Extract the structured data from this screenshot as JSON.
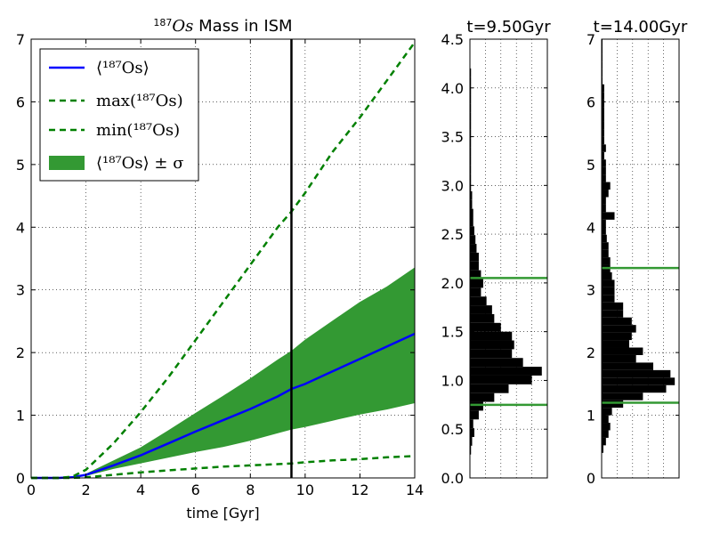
{
  "chart_data": [
    {
      "type": "line",
      "title": "187Os Mass in ISM",
      "xlabel": "time [Gyr]",
      "ylabel": "",
      "xlim": [
        0,
        14
      ],
      "ylim": [
        0,
        7
      ],
      "xticks": [
        "0",
        "2",
        "4",
        "6",
        "8",
        "10",
        "12",
        "14"
      ],
      "yticks": [
        "0",
        "1",
        "2",
        "3",
        "4",
        "5",
        "6",
        "7"
      ],
      "grid": true,
      "legend_position": "top-left",
      "vline_x": 9.5,
      "x": [
        0,
        1,
        1.5,
        2,
        3,
        4,
        5,
        6,
        7,
        8,
        9,
        9.5,
        10,
        11,
        12,
        13,
        14
      ],
      "series": [
        {
          "name": "⟨187Os⟩",
          "style": "solid",
          "color": "#0000ff",
          "values": [
            0,
            0,
            0.01,
            0.05,
            0.2,
            0.36,
            0.55,
            0.74,
            0.92,
            1.1,
            1.3,
            1.42,
            1.5,
            1.7,
            1.9,
            2.1,
            2.3
          ]
        },
        {
          "name": "max(187Os)",
          "style": "dashed",
          "color": "#008000",
          "values": [
            0,
            0,
            0.02,
            0.13,
            0.55,
            1.05,
            1.6,
            2.2,
            2.8,
            3.4,
            4.0,
            4.25,
            4.55,
            5.2,
            5.75,
            6.35,
            6.95
          ]
        },
        {
          "name": "min(187Os)",
          "style": "dashed",
          "color": "#008000",
          "values": [
            0,
            0,
            0,
            0.01,
            0.05,
            0.09,
            0.12,
            0.15,
            0.18,
            0.2,
            0.22,
            0.23,
            0.25,
            0.28,
            0.3,
            0.33,
            0.35
          ]
        }
      ],
      "band": {
        "name": "⟨187Os⟩ ± σ",
        "color": "#339933",
        "lower": [
          0,
          0,
          0.01,
          0.04,
          0.15,
          0.24,
          0.33,
          0.42,
          0.5,
          0.6,
          0.72,
          0.78,
          0.82,
          0.92,
          1.02,
          1.1,
          1.2
        ],
        "upper": [
          0,
          0,
          0.01,
          0.06,
          0.27,
          0.48,
          0.75,
          1.03,
          1.3,
          1.58,
          1.88,
          2.02,
          2.2,
          2.5,
          2.8,
          3.05,
          3.35
        ]
      },
      "legend_labels": {
        "mean": "⟨¹⁸⁷Os⟩",
        "max": "max(¹⁸⁷Os)",
        "min": "min(¹⁸⁷Os)",
        "band": "⟨¹⁸⁷Os⟩ ± σ"
      },
      "colors": {
        "mean": "#0000ff",
        "minmax": "#008000",
        "band": "#339933",
        "vline": "#000000"
      }
    },
    {
      "type": "bar",
      "orientation": "horizontal",
      "title": "t=9.50Gyr",
      "ylim": [
        0,
        4.5
      ],
      "yticks": [
        "0.0",
        "0.5",
        "1.0",
        "1.5",
        "2.0",
        "2.5",
        "3.0",
        "3.5",
        "4.0",
        "4.5"
      ],
      "grid": true,
      "bin_width": 0.09,
      "bins": [
        0.24,
        0.33,
        0.42,
        0.51,
        0.6,
        0.69,
        0.78,
        0.87,
        0.96,
        1.05,
        1.14,
        1.23,
        1.32,
        1.41,
        1.5,
        1.59,
        1.68,
        1.77,
        1.86,
        1.95,
        2.04,
        2.13,
        2.22,
        2.31,
        2.4,
        2.49,
        2.58,
        2.67,
        2.76,
        2.85,
        2.94,
        3.03,
        3.12,
        3.21,
        3.3,
        3.39,
        3.48,
        3.57,
        3.66,
        3.75,
        3.84,
        3.93,
        4.02,
        4.11
      ],
      "counts": [
        1,
        2,
        4,
        3,
        8,
        12,
        22,
        35,
        56,
        65,
        48,
        38,
        40,
        38,
        28,
        22,
        20,
        15,
        10,
        12,
        10,
        8,
        8,
        6,
        5,
        4,
        3,
        3,
        2,
        2,
        1,
        1,
        1,
        1,
        1,
        1,
        1,
        1,
        1,
        1,
        1,
        1,
        1,
        1
      ],
      "xmax": 70,
      "hlines": [
        0.75,
        2.05
      ],
      "hline_color": "#339933"
    },
    {
      "type": "bar",
      "orientation": "horizontal",
      "title": "t=14.00Gyr",
      "ylim": [
        0,
        7
      ],
      "yticks": [
        "0",
        "1",
        "2",
        "3",
        "4",
        "5",
        "6",
        "7"
      ],
      "grid": true,
      "bin_width": 0.12,
      "bins": [
        0.4,
        0.52,
        0.64,
        0.76,
        0.88,
        1.0,
        1.12,
        1.24,
        1.36,
        1.48,
        1.6,
        1.72,
        1.84,
        1.96,
        2.08,
        2.2,
        2.32,
        2.44,
        2.56,
        2.68,
        2.8,
        2.92,
        3.04,
        3.16,
        3.28,
        3.4,
        3.52,
        3.64,
        3.76,
        3.88,
        4.0,
        4.12,
        4.24,
        4.36,
        4.48,
        4.6,
        4.72,
        4.84,
        4.96,
        5.08,
        5.2,
        5.32,
        5.44,
        5.56,
        5.68,
        5.8,
        5.92,
        6.04,
        6.16,
        6.28,
        6.4,
        6.52,
        6.64,
        6.76,
        6.88
      ],
      "counts": [
        2,
        5,
        8,
        10,
        8,
        12,
        25,
        48,
        75,
        85,
        80,
        60,
        40,
        48,
        32,
        35,
        40,
        35,
        25,
        25,
        15,
        15,
        15,
        12,
        10,
        10,
        8,
        8,
        6,
        5,
        5,
        15,
        5,
        5,
        8,
        10,
        5,
        5,
        5,
        3,
        5,
        3,
        3,
        3,
        3,
        3,
        3,
        3,
        3,
        1,
        1,
        1,
        1,
        1,
        1
      ],
      "xmax": 90,
      "hlines": [
        1.2,
        3.35
      ],
      "hline_color": "#339933"
    }
  ]
}
